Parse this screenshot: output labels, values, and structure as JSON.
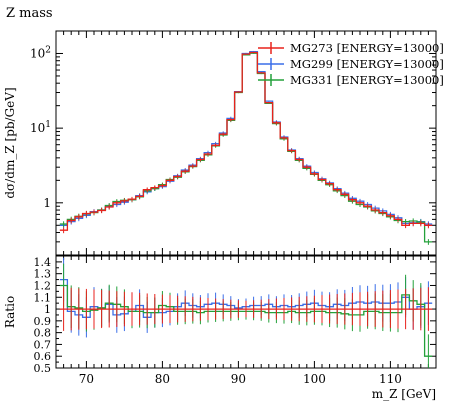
{
  "chart_data": {
    "type": "line",
    "title": "Z mass",
    "xlabel": "m_Z [GeV]",
    "ylabel": "dσ/dm_Z [pb/GeV]",
    "ratio_ylabel": "Ratio",
    "xlim": [
      66,
      116
    ],
    "ylim": [
      0.2,
      200
    ],
    "yscale": "log",
    "ratio_ylim": [
      0.5,
      1.45
    ],
    "x_ticks": [
      70,
      80,
      90,
      100,
      110
    ],
    "y_ticks": [
      {
        "value": 1,
        "label": "1"
      },
      {
        "value": 10,
        "label": "10",
        "exp": "1"
      },
      {
        "value": 100,
        "label": "10",
        "exp": "2"
      }
    ],
    "ratio_ticks": [
      "0.5",
      "0.6",
      "0.7",
      "0.8",
      "0.9",
      "1",
      "1.1",
      "1.2",
      "1.3",
      "1.4"
    ],
    "legend_position": "top-right",
    "colors": {
      "MG273": "#e8221c",
      "MG299": "#3a6ee8",
      "MG331": "#23a13a"
    },
    "x": [
      67,
      68,
      69,
      70,
      71,
      72,
      73,
      74,
      75,
      76,
      77,
      78,
      79,
      80,
      81,
      82,
      83,
      84,
      85,
      86,
      87,
      88,
      89,
      90,
      91,
      92,
      93,
      94,
      95,
      96,
      97,
      98,
      99,
      100,
      101,
      102,
      103,
      104,
      105,
      106,
      107,
      108,
      109,
      110,
      111,
      112,
      113,
      114,
      115
    ],
    "series": [
      {
        "name": "MG273 [ENERGY=13000]",
        "color": "#e8221c",
        "values": [
          0.43,
          0.58,
          0.65,
          0.72,
          0.75,
          0.79,
          0.88,
          1.0,
          1.06,
          1.12,
          1.22,
          1.5,
          1.6,
          1.7,
          2.0,
          2.25,
          2.65,
          3.1,
          3.8,
          4.5,
          5.9,
          8.3,
          13.0,
          30.5,
          98,
          103,
          55,
          22,
          11.8,
          7.4,
          5.0,
          3.8,
          3.0,
          2.45,
          2.05,
          1.8,
          1.5,
          1.3,
          1.1,
          1.0,
          0.9,
          0.8,
          0.74,
          0.67,
          0.6,
          0.5,
          0.53,
          0.53,
          0.5
        ],
        "ratio": [
          1.0,
          1.0,
          1.0,
          1.0,
          1.0,
          1.0,
          1.0,
          1.0,
          1.0,
          1.0,
          1.0,
          1.0,
          1.0,
          1.0,
          1.0,
          1.0,
          1.0,
          1.0,
          1.0,
          1.0,
          1.0,
          1.0,
          1.0,
          1.0,
          1.0,
          1.0,
          1.0,
          1.0,
          1.0,
          1.0,
          1.0,
          1.0,
          1.0,
          1.0,
          1.0,
          1.0,
          1.0,
          1.0,
          1.0,
          1.0,
          1.0,
          1.0,
          1.0,
          1.0,
          1.0,
          1.0,
          1.0,
          1.0,
          1.0
        ]
      },
      {
        "name": "MG299 [ENERGY=13000]",
        "color": "#3a6ee8",
        "values": [
          0.5,
          0.56,
          0.62,
          0.68,
          0.76,
          0.8,
          0.9,
          0.95,
          1.02,
          1.1,
          1.25,
          1.4,
          1.55,
          1.65,
          1.95,
          2.3,
          2.75,
          3.2,
          3.9,
          4.7,
          6.2,
          8.6,
          13.5,
          30.8,
          100,
          106,
          57,
          23,
          12.1,
          7.6,
          5.1,
          3.9,
          3.1,
          2.55,
          2.1,
          1.85,
          1.55,
          1.35,
          1.15,
          1.05,
          0.95,
          0.85,
          0.78,
          0.7,
          0.63,
          0.53,
          0.54,
          0.56,
          0.52
        ],
        "ratio": [
          1.25,
          0.98,
          0.95,
          0.93,
          1.02,
          1.01,
          1.04,
          0.95,
          0.96,
          0.98,
          1.03,
          0.93,
          0.97,
          0.97,
          0.98,
          1.02,
          1.05,
          1.03,
          1.02,
          1.04,
          1.05,
          1.04,
          1.03,
          1.01,
          1.02,
          1.03,
          1.03,
          1.04,
          1.02,
          1.03,
          1.02,
          1.03,
          1.04,
          1.05,
          1.03,
          1.02,
          1.04,
          1.03,
          1.05,
          1.06,
          1.05,
          1.06,
          1.05,
          1.05,
          1.06,
          1.1,
          1.0,
          1.02,
          1.05
        ]
      },
      {
        "name": "MG331 [ENERGY=13000]",
        "color": "#23a13a",
        "values": [
          0.52,
          0.6,
          0.66,
          0.71,
          0.74,
          0.8,
          0.92,
          1.04,
          1.08,
          1.1,
          1.2,
          1.45,
          1.55,
          1.75,
          2.05,
          2.2,
          2.6,
          3.05,
          3.7,
          4.4,
          5.8,
          8.1,
          12.7,
          30.0,
          96,
          101,
          54,
          21.5,
          11.5,
          7.2,
          4.9,
          3.7,
          2.9,
          2.4,
          2.0,
          1.75,
          1.45,
          1.25,
          1.05,
          0.95,
          0.88,
          0.78,
          0.72,
          0.65,
          0.58,
          0.56,
          0.57,
          0.55,
          0.3
        ],
        "ratio": [
          1.2,
          1.02,
          1.01,
          0.98,
          0.99,
          1.01,
          1.05,
          1.04,
          1.02,
          0.98,
          0.98,
          0.97,
          0.97,
          1.03,
          1.02,
          0.98,
          0.98,
          0.98,
          0.97,
          0.98,
          0.98,
          0.98,
          0.98,
          0.98,
          0.98,
          0.98,
          0.98,
          0.97,
          0.97,
          0.97,
          0.98,
          0.97,
          0.97,
          0.98,
          0.98,
          0.97,
          0.97,
          0.96,
          0.95,
          0.95,
          0.98,
          0.98,
          0.97,
          0.97,
          0.97,
          1.12,
          1.07,
          1.04,
          0.6
        ]
      }
    ]
  }
}
